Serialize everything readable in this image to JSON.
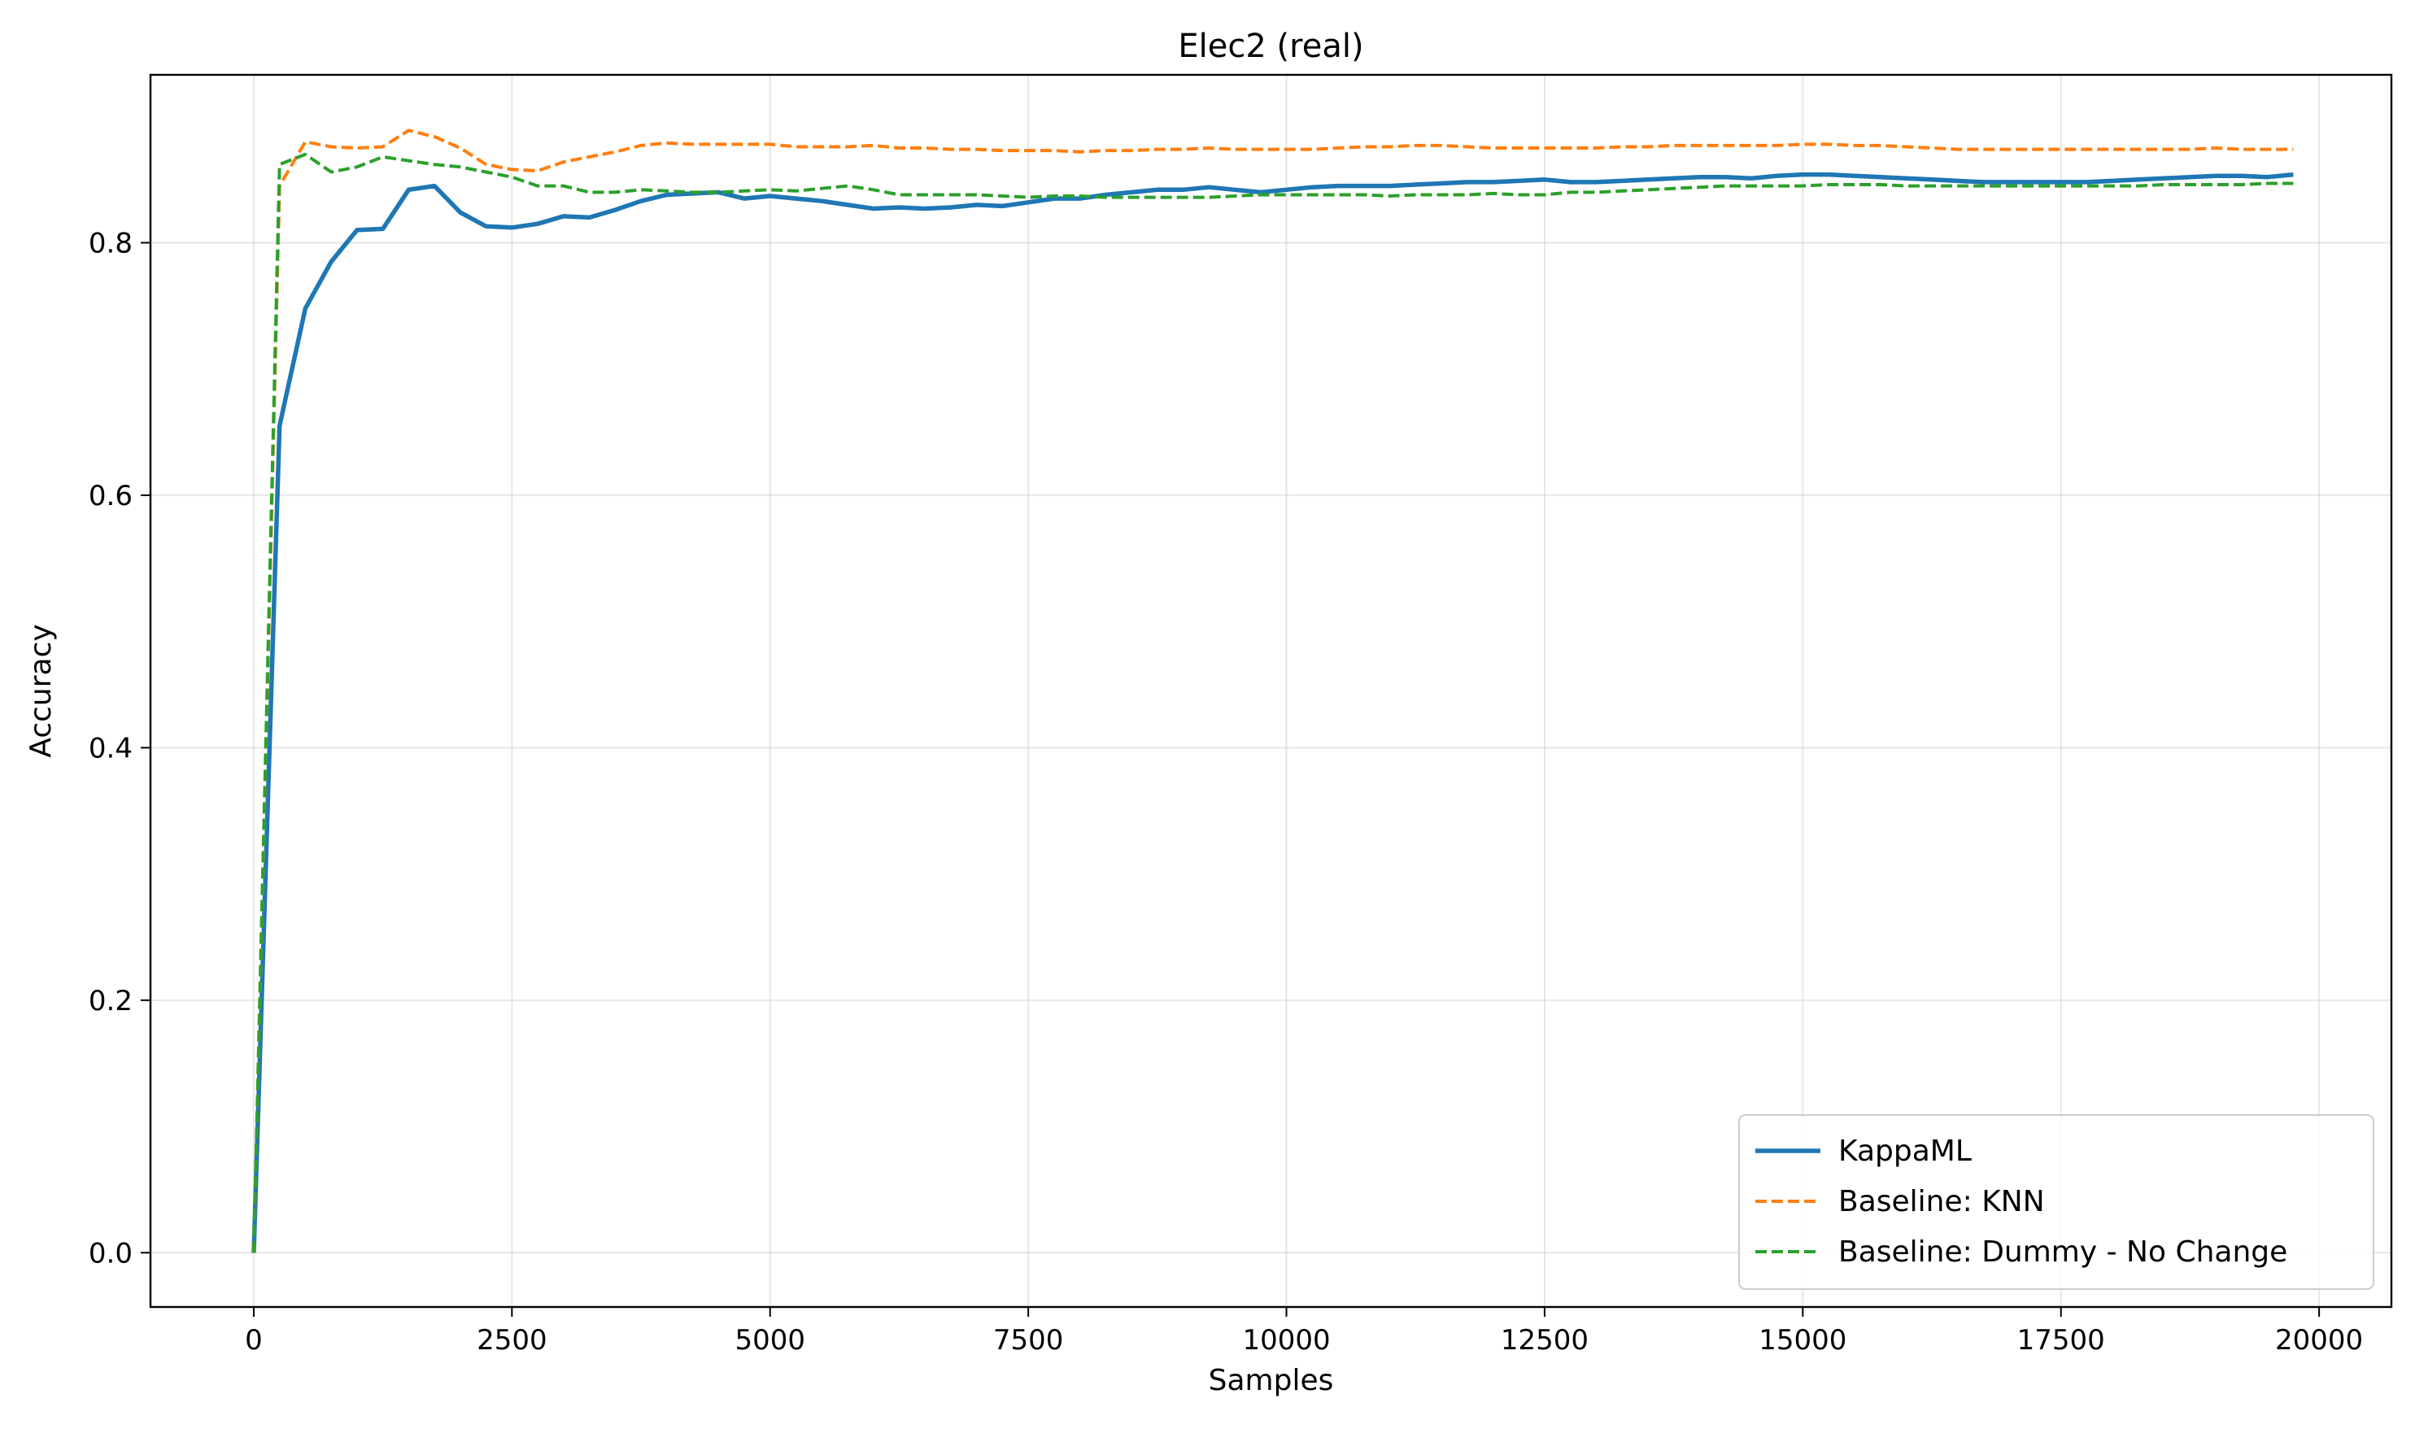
{
  "chart_data": {
    "type": "line",
    "title": "Elec2 (real)",
    "xlabel": "Samples",
    "ylabel": "Accuracy",
    "xlim": [
      -1000,
      20700
    ],
    "ylim": [
      -0.043,
      0.933
    ],
    "xticks": [
      0,
      2500,
      5000,
      7500,
      10000,
      12500,
      15000,
      17500,
      20000
    ],
    "xtick_labels": [
      "0",
      "2500",
      "5000",
      "7500",
      "10000",
      "12500",
      "15000",
      "17500",
      "20000"
    ],
    "yticks": [
      0.0,
      0.2,
      0.4,
      0.6,
      0.8
    ],
    "ytick_labels": [
      "0.0",
      "0.2",
      "0.4",
      "0.6",
      "0.8"
    ],
    "grid": true,
    "legend_position": "bottom-right",
    "series": [
      {
        "name": "KappaML",
        "color": "#1f77b4",
        "style": "solid",
        "x": [
          0,
          250,
          500,
          750,
          1000,
          1250,
          1500,
          1750,
          2000,
          2250,
          2500,
          2750,
          3000,
          3250,
          3500,
          3750,
          4000,
          4250,
          4500,
          4750,
          5000,
          5250,
          5500,
          5750,
          6000,
          6250,
          6500,
          6750,
          7000,
          7250,
          7500,
          7750,
          8000,
          8250,
          8500,
          8750,
          9000,
          9250,
          9500,
          9750,
          10000,
          10250,
          10500,
          10750,
          11000,
          11250,
          11500,
          11750,
          12000,
          12250,
          12500,
          12750,
          13000,
          13250,
          13500,
          13750,
          14000,
          14250,
          14500,
          14750,
          15000,
          15250,
          15500,
          15750,
          16000,
          16250,
          16500,
          16750,
          17000,
          17250,
          17500,
          17750,
          18000,
          18250,
          18500,
          18750,
          19000,
          19250,
          19500,
          19750
        ],
        "y": [
          0.0,
          0.655,
          0.748,
          0.785,
          0.81,
          0.811,
          0.842,
          0.845,
          0.824,
          0.813,
          0.812,
          0.815,
          0.821,
          0.82,
          0.826,
          0.833,
          0.838,
          0.839,
          0.84,
          0.835,
          0.837,
          0.835,
          0.833,
          0.83,
          0.827,
          0.828,
          0.827,
          0.828,
          0.83,
          0.829,
          0.832,
          0.835,
          0.835,
          0.838,
          0.84,
          0.842,
          0.842,
          0.844,
          0.842,
          0.84,
          0.842,
          0.844,
          0.845,
          0.845,
          0.845,
          0.846,
          0.847,
          0.848,
          0.848,
          0.849,
          0.85,
          0.848,
          0.848,
          0.849,
          0.85,
          0.851,
          0.852,
          0.852,
          0.851,
          0.853,
          0.854,
          0.854,
          0.853,
          0.852,
          0.851,
          0.85,
          0.849,
          0.848,
          0.848,
          0.848,
          0.848,
          0.848,
          0.849,
          0.85,
          0.851,
          0.852,
          0.853,
          0.853,
          0.852,
          0.854
        ]
      },
      {
        "name": "Baseline: KNN",
        "color": "#ff7f0e",
        "style": "dashed",
        "x": [
          0,
          250,
          500,
          750,
          1000,
          1250,
          1500,
          1750,
          2000,
          2250,
          2500,
          2750,
          3000,
          3250,
          3500,
          3750,
          4000,
          4250,
          4500,
          4750,
          5000,
          5250,
          5500,
          5750,
          6000,
          6250,
          6500,
          6750,
          7000,
          7250,
          7500,
          7750,
          8000,
          8250,
          8500,
          8750,
          9000,
          9250,
          9500,
          9750,
          10000,
          10250,
          10500,
          10750,
          11000,
          11250,
          11500,
          11750,
          12000,
          12250,
          12500,
          12750,
          13000,
          13250,
          13500,
          13750,
          14000,
          14250,
          14500,
          14750,
          15000,
          15250,
          15500,
          15750,
          16000,
          16250,
          16500,
          16750,
          17000,
          17250,
          17500,
          17750,
          18000,
          18250,
          18500,
          18750,
          19000,
          19250,
          19500,
          19750
        ],
        "y": [
          0.0,
          0.845,
          0.88,
          0.876,
          0.875,
          0.876,
          0.889,
          0.884,
          0.875,
          0.862,
          0.858,
          0.857,
          0.864,
          0.868,
          0.872,
          0.877,
          0.879,
          0.878,
          0.878,
          0.878,
          0.878,
          0.876,
          0.876,
          0.876,
          0.877,
          0.875,
          0.875,
          0.874,
          0.874,
          0.873,
          0.873,
          0.873,
          0.872,
          0.873,
          0.873,
          0.874,
          0.874,
          0.875,
          0.874,
          0.874,
          0.874,
          0.874,
          0.875,
          0.876,
          0.876,
          0.877,
          0.877,
          0.876,
          0.875,
          0.875,
          0.875,
          0.875,
          0.875,
          0.876,
          0.876,
          0.877,
          0.877,
          0.877,
          0.877,
          0.877,
          0.878,
          0.878,
          0.877,
          0.877,
          0.876,
          0.875,
          0.874,
          0.874,
          0.874,
          0.874,
          0.874,
          0.874,
          0.874,
          0.874,
          0.874,
          0.874,
          0.875,
          0.874,
          0.874,
          0.874
        ]
      },
      {
        "name": "Baseline: Dummy - No Change",
        "color": "#2ca02c",
        "style": "dashed",
        "x": [
          0,
          250,
          500,
          750,
          1000,
          1250,
          1500,
          1750,
          2000,
          2250,
          2500,
          2750,
          3000,
          3250,
          3500,
          3750,
          4000,
          4250,
          4500,
          4750,
          5000,
          5250,
          5500,
          5750,
          6000,
          6250,
          6500,
          6750,
          7000,
          7250,
          7500,
          7750,
          8000,
          8250,
          8500,
          8750,
          9000,
          9250,
          9500,
          9750,
          10000,
          10250,
          10500,
          10750,
          11000,
          11250,
          11500,
          11750,
          12000,
          12250,
          12500,
          12750,
          13000,
          13250,
          13500,
          13750,
          14000,
          14250,
          14500,
          14750,
          15000,
          15250,
          15500,
          15750,
          16000,
          16250,
          16500,
          16750,
          17000,
          17250,
          17500,
          17750,
          18000,
          18250,
          18500,
          18750,
          19000,
          19250,
          19500,
          19750
        ],
        "y": [
          0.0,
          0.862,
          0.87,
          0.856,
          0.86,
          0.868,
          0.865,
          0.862,
          0.86,
          0.856,
          0.852,
          0.845,
          0.845,
          0.84,
          0.84,
          0.842,
          0.841,
          0.84,
          0.84,
          0.841,
          0.842,
          0.841,
          0.843,
          0.845,
          0.842,
          0.838,
          0.838,
          0.838,
          0.838,
          0.837,
          0.836,
          0.837,
          0.837,
          0.836,
          0.836,
          0.836,
          0.836,
          0.836,
          0.837,
          0.838,
          0.838,
          0.838,
          0.838,
          0.838,
          0.837,
          0.838,
          0.838,
          0.838,
          0.839,
          0.838,
          0.838,
          0.84,
          0.84,
          0.841,
          0.842,
          0.843,
          0.844,
          0.845,
          0.845,
          0.845,
          0.845,
          0.846,
          0.846,
          0.846,
          0.845,
          0.845,
          0.845,
          0.845,
          0.845,
          0.845,
          0.845,
          0.845,
          0.845,
          0.845,
          0.846,
          0.846,
          0.846,
          0.846,
          0.847,
          0.847
        ]
      }
    ]
  }
}
